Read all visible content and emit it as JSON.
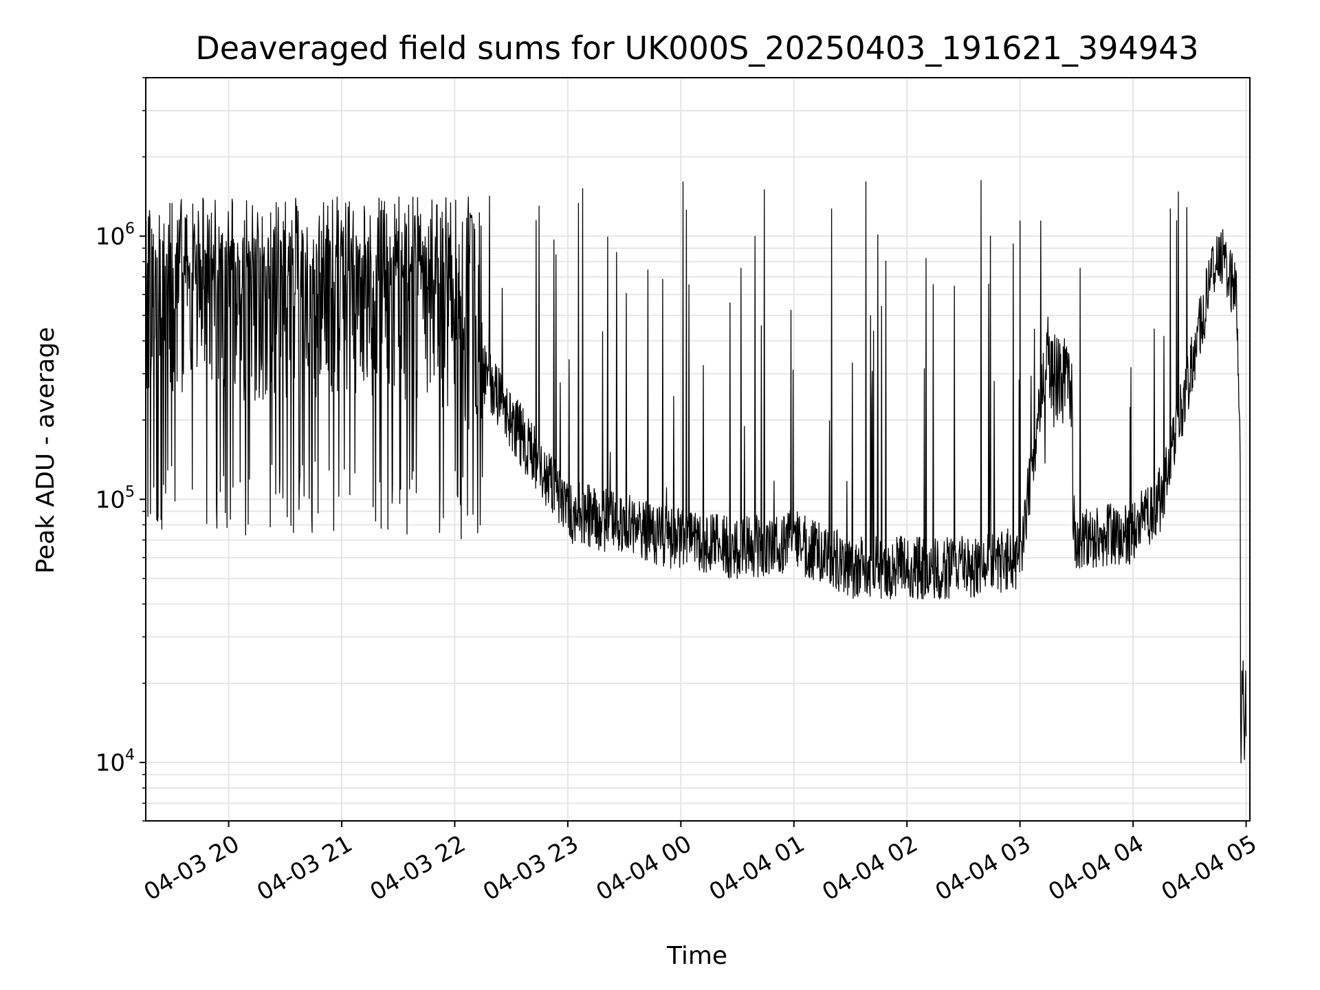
{
  "chart_data": {
    "type": "line",
    "title": "Deaveraged field sums for UK000S_20250403_191621_394943",
    "xlabel": "Time",
    "ylabel": "Peak ADU - average",
    "yscale": "log",
    "ylim": [
      6000,
      4000000
    ],
    "xlim": [
      "2025-04-03 19:16",
      "2025-04-04 05:02"
    ],
    "x_ticks": [
      "04-03 20",
      "04-03 21",
      "04-03 22",
      "04-03 23",
      "04-04 00",
      "04-04 01",
      "04-04 02",
      "04-04 03",
      "04-04 04",
      "04-04 05"
    ],
    "y_ticks": [
      {
        "base": "10",
        "exp": "4",
        "value": 10000
      },
      {
        "base": "10",
        "exp": "5",
        "value": 100000
      },
      {
        "base": "10",
        "exp": "6",
        "value": 1000000
      }
    ],
    "grid": true,
    "line_color": "#000000",
    "grid_color": "#e6e6e6",
    "series": [
      {
        "x": [
          "2025-04-03 19:16",
          "2025-04-03 19:30",
          "2025-04-03 19:45",
          "2025-04-03 20:00",
          "2025-04-03 20:30",
          "2025-04-03 21:00",
          "2025-04-03 21:30",
          "2025-04-03 22:00",
          "2025-04-03 22:30",
          "2025-04-03 23:00",
          "2025-04-03 23:30",
          "2025-04-04 00:00",
          "2025-04-04 00:30",
          "2025-04-04 01:00",
          "2025-04-04 01:30",
          "2025-04-04 02:00",
          "2025-04-04 02:30",
          "2025-04-04 03:00",
          "2025-04-04 03:15",
          "2025-04-04 03:30",
          "2025-04-04 04:00",
          "2025-04-04 04:15",
          "2025-04-04 04:30",
          "2025-04-04 04:45",
          "2025-04-04 04:55",
          "2025-04-04 05:00"
        ],
        "y": [
          550000,
          450000,
          700000,
          450000,
          500000,
          520000,
          500000,
          450000,
          200000,
          90000,
          80000,
          70000,
          65000,
          70000,
          55000,
          55000,
          55000,
          60000,
          400000,
          70000,
          75000,
          100000,
          300000,
          900000,
          600000,
          20000
        ]
      }
    ]
  }
}
